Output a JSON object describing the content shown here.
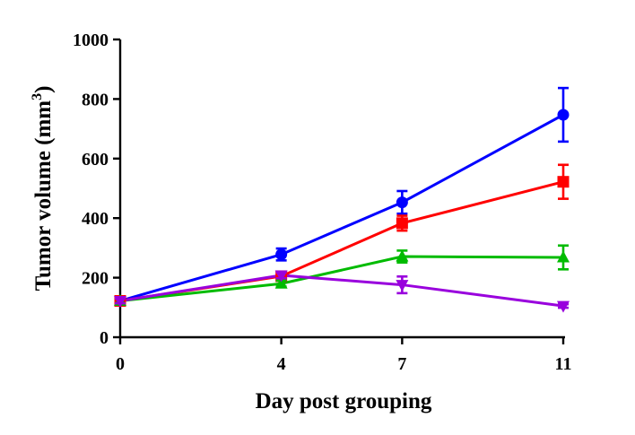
{
  "chart_data": {
    "type": "line",
    "xlabel": "Day post grouping",
    "ylabel_main": "Tumor volume (mm",
    "ylabel_sup": "3",
    "ylabel_close": ")",
    "x": [
      0,
      4,
      7,
      11
    ],
    "x_tick_labels": [
      "0",
      "4",
      "7",
      "11"
    ],
    "ylim": [
      0,
      1000
    ],
    "y_ticks": [
      0,
      200,
      400,
      600,
      800,
      1000
    ],
    "y_tick_labels": [
      "0",
      "200",
      "400",
      "600",
      "800",
      "1000"
    ],
    "grid": false,
    "series": [
      {
        "color": "#0000ff",
        "marker": "circle",
        "values": [
          122,
          278,
          453,
          747
        ],
        "errors": [
          10,
          20,
          38,
          90
        ]
      },
      {
        "color": "#ff0000",
        "marker": "square",
        "values": [
          122,
          205,
          383,
          522
        ],
        "errors": [
          8,
          12,
          25,
          57
        ]
      },
      {
        "color": "#00bb00",
        "marker": "triangle-up",
        "values": [
          122,
          180,
          271,
          268
        ],
        "errors": [
          8,
          10,
          20,
          40
        ]
      },
      {
        "color": "#9900dd",
        "marker": "triangle-down",
        "values": [
          122,
          208,
          176,
          105
        ],
        "errors": [
          8,
          10,
          28,
          6
        ]
      }
    ]
  }
}
